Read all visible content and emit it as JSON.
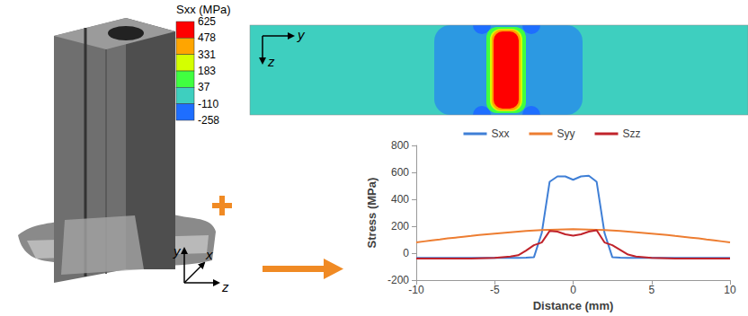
{
  "chart_data": {
    "type": "line",
    "x_label": "Distance (mm)",
    "y_label": "Stress (MPa)",
    "x": [
      -10,
      -9.5,
      -9,
      -8.5,
      -8,
      -7.5,
      -7,
      -6.5,
      -6,
      -5.5,
      -5,
      -4.5,
      -4,
      -3.5,
      -3,
      -2.5,
      -2,
      -1.5,
      -1,
      -0.5,
      0,
      0.5,
      1,
      1.5,
      2,
      2.5,
      3,
      3.5,
      4,
      4.5,
      5,
      5.5,
      6,
      6.5,
      7,
      7.5,
      8,
      8.5,
      9,
      9.5,
      10
    ],
    "series": [
      {
        "name": "Sxx",
        "color": "#3f7fd6",
        "values": [
          -35,
          -35,
          -35,
          -35,
          -35,
          -35,
          -35,
          -35,
          -35,
          -35,
          -35,
          -35,
          -35,
          -35,
          -33,
          -30,
          150,
          530,
          570,
          570,
          545,
          570,
          575,
          530,
          150,
          -30,
          -33,
          -35,
          -35,
          -35,
          -35,
          -35,
          -35,
          -35,
          -35,
          -35,
          -35,
          -35,
          -35,
          -35,
          -35
        ]
      },
      {
        "name": "Syy",
        "color": "#ed7d31",
        "values": [
          80,
          88,
          95,
          102,
          110,
          116,
          122,
          128,
          135,
          140,
          145,
          150,
          155,
          160,
          165,
          169,
          172,
          174,
          176,
          177,
          178,
          177,
          176,
          174,
          172,
          169,
          165,
          160,
          155,
          150,
          145,
          140,
          135,
          128,
          122,
          116,
          110,
          102,
          95,
          88,
          80
        ]
      },
      {
        "name": "Szz",
        "color": "#c0232b",
        "values": [
          -40,
          -40,
          -40,
          -40,
          -40,
          -40,
          -40,
          -40,
          -38,
          -36,
          -35,
          -30,
          -25,
          -15,
          20,
          60,
          80,
          165,
          160,
          140,
          130,
          140,
          160,
          170,
          80,
          60,
          25,
          -10,
          -25,
          -30,
          -35,
          -36,
          -38,
          -40,
          -40,
          -40,
          -40,
          -40,
          -40,
          -40,
          -40
        ]
      }
    ],
    "xlim": [
      -10,
      10
    ],
    "xticks": [
      -10,
      -5,
      0,
      5,
      10
    ],
    "ylim": [
      -200,
      800
    ],
    "yticks": [
      -200,
      0,
      200,
      400,
      600,
      800
    ],
    "grid": false,
    "legend": "top"
  },
  "contour_map": {
    "colorbar_title": "Sxx (MPa)",
    "colorbar_ticks": [
      625,
      478,
      331,
      183,
      37,
      -110,
      -258
    ],
    "colors": [
      "#ff0000",
      "#ffa500",
      "#d4ff00",
      "#40ff40",
      "#3ecfbf",
      "#1e6eff"
    ],
    "axes": [
      "y",
      "z"
    ]
  },
  "photo_axes": [
    "y",
    "x",
    "z"
  ]
}
